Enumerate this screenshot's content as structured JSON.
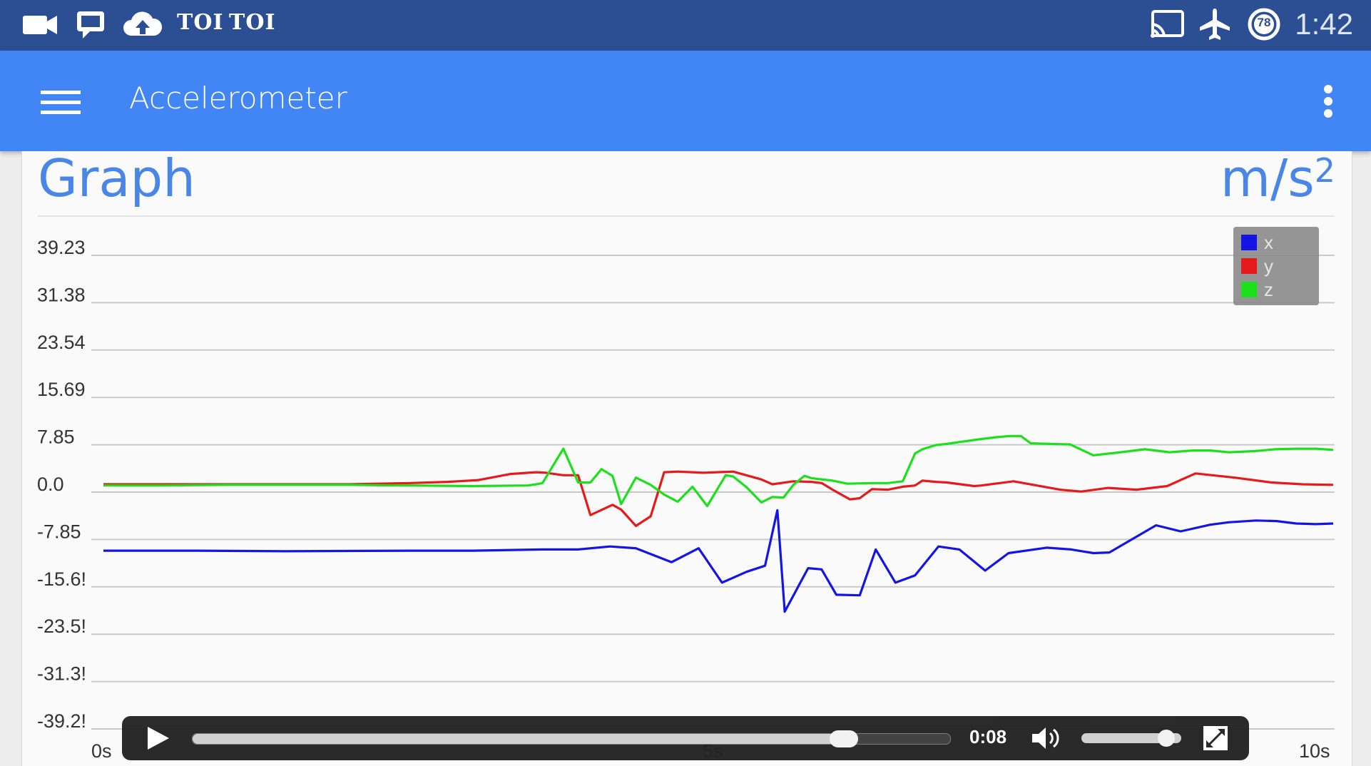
{
  "status_bar": {
    "notification_icons": [
      "video-camera-icon",
      "message-icon",
      "cloud-upload-icon"
    ],
    "toi_badges": [
      "TOI",
      "TOI"
    ],
    "system_icons": [
      "cast-icon",
      "airplane-mode-icon",
      "battery-icon"
    ],
    "battery_level": "78",
    "time": "1:42"
  },
  "app_bar": {
    "title": "Accelerometer",
    "menu_icon": "hamburger-menu-icon",
    "overflow_icon": "more-vert-icon"
  },
  "card": {
    "title": "Graph",
    "unit": "m/s",
    "unit_exponent": "2"
  },
  "chart_data": {
    "type": "line",
    "title": "Graph",
    "ylabel": "m/s²",
    "xlabel": "",
    "ylim": [
      -39.23,
      39.23
    ],
    "xlim": [
      0,
      10
    ],
    "yticks": [
      "39.23",
      "31.38",
      "23.54",
      "15.69",
      "7.85",
      "0.0",
      "-7.85",
      "-15.6!",
      "-23.5!",
      "-31.3!",
      "-39.2!"
    ],
    "xticks": [
      "0s",
      "5s",
      "10s"
    ],
    "grid": true,
    "legend_position": "top-right",
    "legend": [
      "x",
      "y",
      "z"
    ],
    "colors": {
      "x": "#1414e6",
      "y": "#e61a1a",
      "z": "#1de01d"
    },
    "series": [
      {
        "name": "x",
        "color": "#1414e6",
        "x": [
          0,
          0.77,
          1.48,
          2.5,
          3.0,
          3.57,
          3.86,
          4.12,
          4.33,
          4.62,
          4.84,
          5.03,
          5.23,
          5.38,
          5.48,
          5.54,
          5.73,
          5.84,
          5.96,
          6.15,
          6.28,
          6.44,
          6.6,
          6.79,
          6.96,
          7.17,
          7.36,
          7.67,
          7.87,
          8.05,
          8.18,
          8.56,
          8.76,
          9.0,
          9.15,
          9.37,
          9.54,
          9.7,
          9.86,
          10.0
        ],
        "y": [
          -9.7,
          -9.7,
          -9.8,
          -9.7,
          -9.7,
          -9.5,
          -9.5,
          -9.0,
          -9.3,
          -11.6,
          -9.3,
          -15.0,
          -13.2,
          -12.2,
          -3.0,
          -19.8,
          -12.6,
          -12.8,
          -17.0,
          -17.1,
          -9.5,
          -15.0,
          -13.8,
          -9.0,
          -9.5,
          -13.0,
          -10.1,
          -9.2,
          -9.5,
          -10.1,
          -10.0,
          -5.5,
          -6.5,
          -5.4,
          -5.0,
          -4.7,
          -4.8,
          -5.2,
          -5.3,
          -5.2
        ]
      },
      {
        "name": "y",
        "color": "#e61a1a",
        "x": [
          0,
          1.0,
          2.0,
          2.5,
          2.8,
          3.05,
          3.31,
          3.45,
          3.52,
          3.6,
          3.74,
          3.86,
          3.96,
          4.14,
          4.21,
          4.33,
          4.45,
          4.56,
          4.67,
          4.88,
          5.12,
          5.35,
          5.44,
          5.61,
          5.76,
          5.84,
          5.93,
          6.07,
          6.15,
          6.25,
          6.38,
          6.5,
          6.6,
          6.66,
          6.77,
          6.86,
          7.08,
          7.14,
          7.4,
          7.78,
          7.95,
          8.17,
          8.4,
          8.65,
          8.88,
          9.2,
          9.5,
          9.75,
          10.0
        ],
        "y": [
          1.3,
          1.3,
          1.3,
          1.5,
          1.7,
          2.0,
          3.0,
          3.2,
          3.3,
          3.2,
          2.8,
          2.8,
          -3.8,
          -2.1,
          -2.9,
          -5.6,
          -4.0,
          3.3,
          3.4,
          3.2,
          3.4,
          2.1,
          1.3,
          1.8,
          1.7,
          1.5,
          0.4,
          -1.2,
          -1.0,
          0.5,
          0.4,
          0.9,
          1.1,
          1.9,
          1.7,
          1.6,
          1.0,
          1.1,
          1.8,
          0.4,
          0.1,
          0.7,
          0.4,
          1.0,
          3.1,
          2.4,
          1.6,
          1.3,
          1.2
        ]
      },
      {
        "name": "z",
        "color": "#1de01d",
        "x": [
          0,
          0.5,
          1.0,
          1.5,
          2.0,
          2.35,
          2.5,
          3.0,
          3.45,
          3.52,
          3.57,
          3.74,
          3.86,
          3.96,
          4.05,
          4.14,
          4.21,
          4.33,
          4.45,
          4.56,
          4.67,
          4.79,
          4.91,
          5.06,
          5.12,
          5.23,
          5.35,
          5.44,
          5.53,
          5.61,
          5.7,
          5.76,
          5.93,
          6.05,
          6.25,
          6.38,
          6.5,
          6.6,
          6.66,
          6.77,
          6.86,
          6.96,
          7.14,
          7.26,
          7.37,
          7.46,
          7.54,
          7.68,
          7.86,
          8.05,
          8.27,
          8.47,
          8.67,
          8.86,
          9.0,
          9.15,
          9.36,
          9.53,
          9.7,
          9.86,
          10.0
        ],
        "y": [
          1.1,
          1.1,
          1.2,
          1.2,
          1.2,
          1.1,
          1.1,
          1.0,
          1.1,
          1.3,
          1.5,
          7.2,
          1.6,
          1.6,
          3.8,
          2.7,
          -2.0,
          2.4,
          1.2,
          -0.4,
          -1.6,
          0.9,
          -2.3,
          2.8,
          2.6,
          0.8,
          -1.7,
          -0.8,
          -0.9,
          1.2,
          2.7,
          2.3,
          1.9,
          1.4,
          1.5,
          1.5,
          1.8,
          6.4,
          7.1,
          7.8,
          8.0,
          8.3,
          8.8,
          9.1,
          9.3,
          9.3,
          8.1,
          8.0,
          7.9,
          6.1,
          6.6,
          7.1,
          6.6,
          6.9,
          6.9,
          6.6,
          6.8,
          7.1,
          7.2,
          7.2,
          7.0
        ]
      }
    ]
  },
  "video_player": {
    "play_icon": "play-icon",
    "time": "0:08",
    "progress": 0.86,
    "volume": 0.85,
    "volume_icon": "volume-icon",
    "fullscreen_icon": "fullscreen-icon"
  }
}
